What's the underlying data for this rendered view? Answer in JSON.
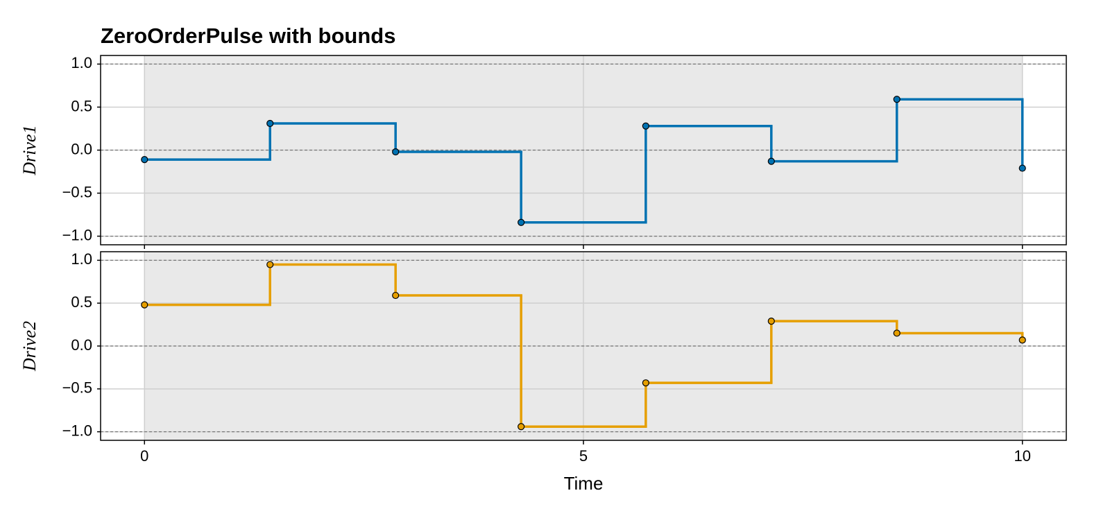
{
  "chart_data": {
    "type": "step",
    "title": "ZeroOrderPulse with bounds",
    "x_label": "Time",
    "x": [
      0,
      1.43,
      2.86,
      4.29,
      5.71,
      7.14,
      8.57,
      10
    ],
    "xlim": [
      -0.5,
      10.5
    ],
    "xticks": [
      0,
      5,
      10
    ],
    "grid": true,
    "hlines": [
      -1,
      0,
      1
    ],
    "panels": [
      {
        "y_label": "Drive1",
        "ylim": [
          -1.1,
          1.1
        ],
        "yticks": [
          {
            "value": -1,
            "label": "−1.0"
          },
          {
            "value": -0.5,
            "label": "−0.5"
          },
          {
            "value": 0,
            "label": "0.0"
          },
          0.5,
          {
            "value": 1,
            "label": "1.0"
          }
        ],
        "color": "#0072b2",
        "values": [
          -0.11,
          0.31,
          -0.02,
          -0.84,
          0.28,
          -0.13,
          0.59,
          -0.21
        ]
      },
      {
        "y_label": "Drive2",
        "ylim": [
          -1.1,
          1.1
        ],
        "yticks": [
          {
            "value": -1,
            "label": "−1.0"
          },
          {
            "value": -0.5,
            "label": "−0.5"
          },
          {
            "value": 0,
            "label": "0.0"
          },
          0.5,
          {
            "value": 1,
            "label": "1.0"
          }
        ],
        "color": "#e69f00",
        "values": [
          0.48,
          0.95,
          0.59,
          -0.94,
          -0.43,
          0.29,
          0.15,
          0.07
        ]
      }
    ]
  }
}
